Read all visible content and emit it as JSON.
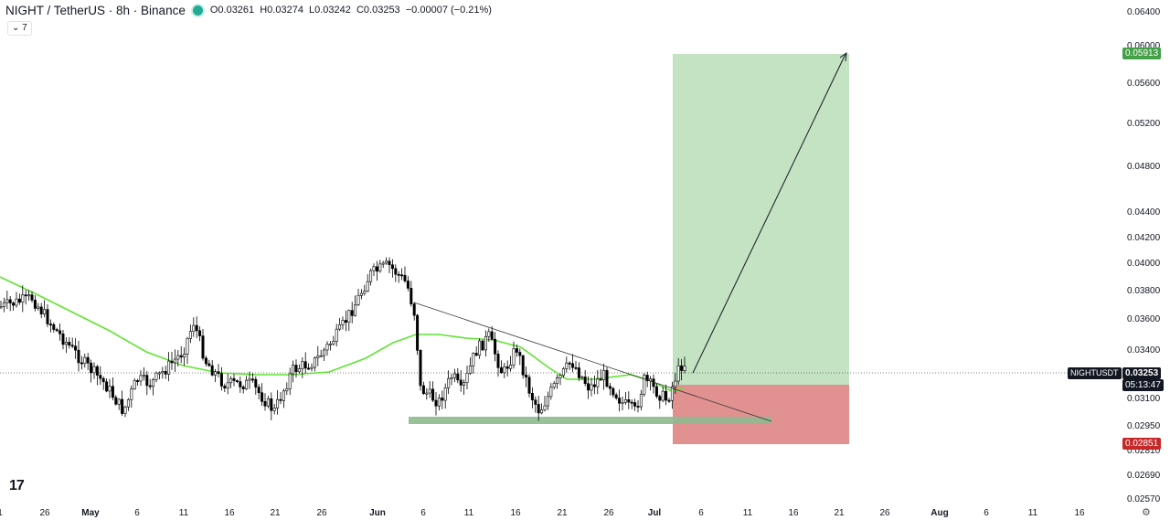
{
  "header": {
    "symbol": "NIGHT / TetherUS · 8h · Binance",
    "open": "O0.03261",
    "high": "H0.03274",
    "low": "L0.03242",
    "close": "C0.03253",
    "change": "−0.00007 (−0.21%)",
    "indicator_toggle": "7"
  },
  "price_axis": {
    "ticks": [
      "0.06400",
      "0.06000",
      "0.05600",
      "0.05200",
      "0.04800",
      "0.04400",
      "0.04200",
      "0.04000",
      "0.03800",
      "0.03600",
      "0.03400",
      "0.03100",
      "0.02950",
      "0.02810",
      "0.02690",
      "0.02570"
    ],
    "target_label": "0.05913",
    "stop_label": "0.02851",
    "current_symbol": "NIGHTUSDT",
    "current_price": "0.03253",
    "countdown": "05:13:47"
  },
  "time_axis": {
    "ticks": [
      "1",
      "26",
      "May",
      "6",
      "11",
      "16",
      "21",
      "26",
      "Jun",
      "6",
      "11",
      "16",
      "21",
      "26",
      "Jul",
      "6",
      "11",
      "16",
      "21",
      "26",
      "Aug",
      "6",
      "11",
      "16"
    ]
  },
  "colors": {
    "up": "#ffffff",
    "down": "#000000",
    "ma": "#4cd923",
    "profit_zone": "#c3e3c3",
    "loss_zone": "#e08a8a",
    "support": "#8fb98f",
    "target_badge": "#43a047",
    "stop_badge": "#c62828"
  },
  "icons": {
    "logo": "tradingview-logo-icon",
    "settings": "gear-icon",
    "collapse": "chevron-down-icon"
  }
}
